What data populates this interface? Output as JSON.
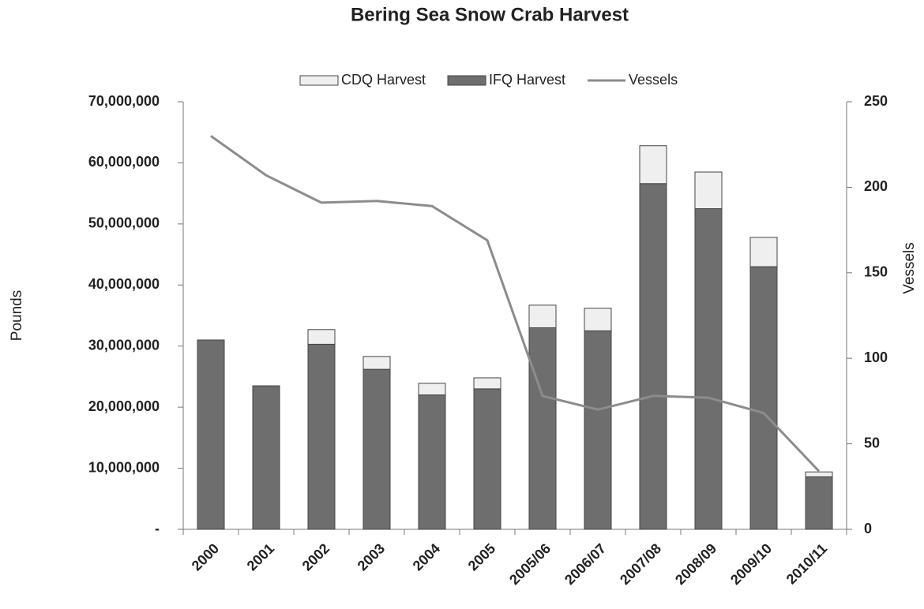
{
  "chart_data": {
    "type": "bar",
    "stacked": true,
    "title": "Bering Sea Snow Crab Harvest",
    "ylabel": "Pounds",
    "y2label": "Vessels",
    "categories": [
      "2000",
      "2001",
      "2002",
      "2003",
      "2004",
      "2005",
      "2005/06",
      "2006/07",
      "2007/08",
      "2008/09",
      "2009/10",
      "2010/11"
    ],
    "series": [
      {
        "name": "CDQ Harvest",
        "color": "#efefef",
        "type": "bar",
        "values": [
          0,
          0,
          2400000,
          2100000,
          1900000,
          1800000,
          3700000,
          3700000,
          6200000,
          6000000,
          4800000,
          800000
        ]
      },
      {
        "name": "IFQ Harvest",
        "color": "#6e6e6e",
        "type": "bar",
        "values": [
          31000000,
          23500000,
          30300000,
          26200000,
          22000000,
          23000000,
          33000000,
          32500000,
          56600000,
          52500000,
          43000000,
          8600000
        ]
      },
      {
        "name": "Vessels",
        "color": "#8c8c8c",
        "type": "line",
        "axis": "y2",
        "values": [
          230,
          207,
          191,
          192,
          189,
          169,
          78,
          70,
          78,
          77,
          68,
          34
        ]
      }
    ],
    "ylim": [
      0,
      70000000
    ],
    "yticks": [
      {
        "value": 0,
        "label": "-"
      },
      {
        "value": 10000000,
        "label": "10,000,000"
      },
      {
        "value": 20000000,
        "label": "20,000,000"
      },
      {
        "value": 30000000,
        "label": "30,000,000"
      },
      {
        "value": 40000000,
        "label": "40,000,000"
      },
      {
        "value": 50000000,
        "label": "50,000,000"
      },
      {
        "value": 60000000,
        "label": "60,000,000"
      },
      {
        "value": 70000000,
        "label": "70,000,000"
      }
    ],
    "y2lim": [
      0,
      250
    ],
    "y2ticks": [
      0,
      50,
      100,
      150,
      200,
      250
    ],
    "grid": false,
    "legend": "top"
  }
}
